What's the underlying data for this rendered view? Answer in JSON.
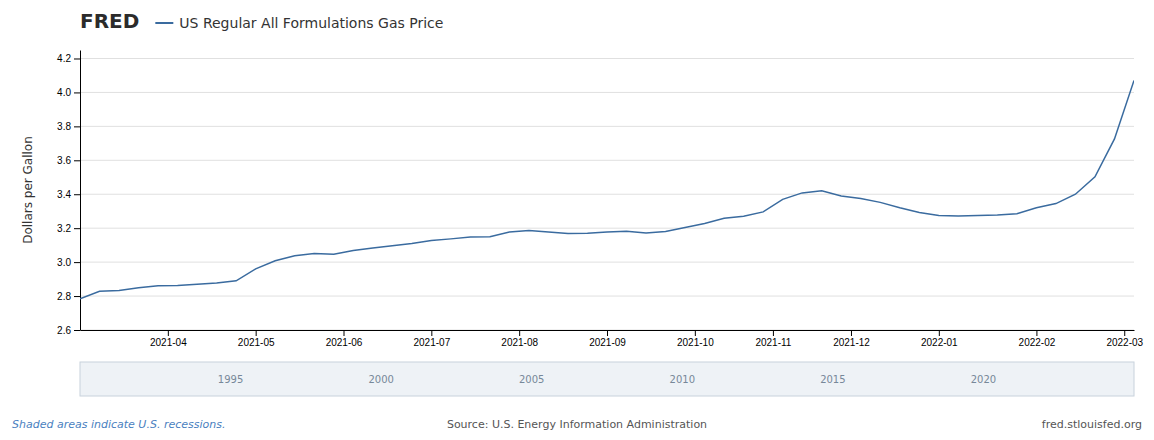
{
  "chart_data": {
    "type": "line",
    "title": "US Regular All Formulations Gas Price",
    "y_label": "Dollars per Gallon",
    "annotations": [
      "FRED",
      "Shaded areas indicate U.S. recessions.",
      "Source: U.S. Energy Information Administration",
      "fred.stlouisfed.org",
      "1995",
      "2000",
      "2005",
      "2010",
      "2015",
      "2020"
    ],
    "color": "#3a6b9f",
    "grid": true,
    "values": [
      2.784,
      2.828,
      2.833,
      2.849,
      2.861,
      2.862,
      2.869,
      2.877,
      2.89,
      2.96,
      3.008,
      3.038,
      3.051,
      3.046,
      3.068,
      3.083,
      3.097,
      3.11,
      3.128,
      3.137,
      3.148,
      3.15,
      3.178,
      3.186,
      3.178,
      3.168,
      3.17,
      3.178,
      3.182,
      3.172,
      3.181,
      3.204,
      3.228,
      3.258,
      3.27,
      3.296,
      3.37,
      3.408,
      3.421,
      3.39,
      3.375,
      3.352,
      3.32,
      3.292,
      3.275,
      3.272,
      3.274,
      3.278,
      3.285,
      3.32,
      3.345,
      3.4,
      3.503,
      3.726,
      4.071
    ],
    "xlim": [
      0,
      54
    ],
    "xticks": [
      {
        "value": 4.5,
        "label": "2021-04"
      },
      {
        "value": 9,
        "label": "2021-05"
      },
      {
        "value": 13.5,
        "label": "2021-06"
      },
      {
        "value": 18,
        "label": "2021-07"
      },
      {
        "value": 22.5,
        "label": "2021-08"
      },
      {
        "value": 27,
        "label": "2021-09"
      },
      {
        "value": 31.5,
        "label": "2021-10"
      },
      {
        "value": 35.5,
        "label": "2021-11"
      },
      {
        "value": 39.5,
        "label": "2021-12"
      },
      {
        "value": 44,
        "label": "2022-01"
      },
      {
        "value": 49,
        "label": "2022-02"
      },
      {
        "value": 53.5,
        "label": "2022-03"
      }
    ],
    "ylim": [
      2.6,
      4.25
    ],
    "yticks": [
      2.6,
      2.8,
      {
        "value": 3.0,
        "label": "3.0"
      },
      3.2,
      3.4,
      3.6,
      3.8,
      {
        "value": 4.0,
        "label": "4.0"
      },
      4.2
    ]
  }
}
